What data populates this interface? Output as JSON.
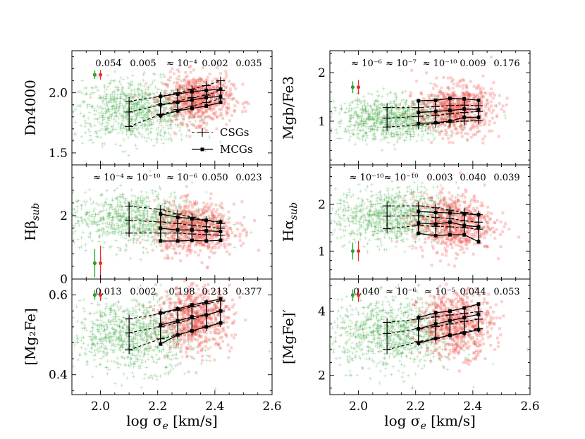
{
  "colors": {
    "csg": "#2ca02c",
    "mcg": "#e8302a",
    "csg_cloud": "#4caf50",
    "mcg_cloud": "#f0524a",
    "line": "#000000"
  },
  "legend": {
    "csg": "CSGs",
    "mcg": "MCGs"
  },
  "xlabel": "log σ_e [km/s]",
  "chart_data": [
    {
      "id": "dn4000",
      "type": "scatter",
      "col": 0,
      "row": 0,
      "ylabel": "Dn4000",
      "ylim": [
        1.4,
        2.35
      ],
      "yticks": [
        1.5,
        2.0
      ],
      "xlim": [
        1.9,
        2.6
      ],
      "xticks": [
        2.0,
        2.2,
        2.4,
        2.6
      ],
      "pvalues": [
        "0.054",
        "0.005",
        "≈ 10⁻⁴",
        "0.002",
        "0.035"
      ],
      "err_csg": {
        "x": 1.98,
        "y": 2.15,
        "err": 0.035
      },
      "err_mcg": {
        "x": 2.0,
        "y": 2.15,
        "err": 0.04
      },
      "cloud_csg": {
        "cx": 2.12,
        "cy": 1.85,
        "sx": 0.11,
        "sy": 0.13
      },
      "cloud_mcg": {
        "cx": 2.34,
        "cy": 1.95,
        "sx": 0.06,
        "sy": 0.1
      },
      "csg_x": [
        2.1,
        2.21,
        2.27,
        2.32,
        2.37,
        2.42
      ],
      "csg_lines": [
        [
          1.93,
          1.97,
          2.0,
          2.03,
          2.06,
          2.1
        ],
        [
          1.84,
          1.9,
          1.93,
          1.96,
          1.98,
          2.02
        ],
        [
          1.72,
          1.82,
          1.86,
          1.89,
          1.92,
          1.95
        ]
      ],
      "mcg_x": [
        2.21,
        2.27,
        2.32,
        2.37,
        2.42
      ],
      "mcg_lines": [
        [
          1.97,
          1.99,
          2.01,
          2.02,
          2.03
        ],
        [
          1.9,
          1.92,
          1.94,
          1.96,
          1.97
        ],
        [
          1.81,
          1.85,
          1.87,
          1.89,
          1.92
        ]
      ],
      "show_legend": true
    },
    {
      "id": "hbeta",
      "type": "scatter",
      "col": 0,
      "row": 1,
      "ylabel": "Hβ_sub",
      "ylim": [
        0,
        3.6
      ],
      "yticks": [
        0,
        2
      ],
      "xlim": [
        1.9,
        2.6
      ],
      "xticks": [
        2.0,
        2.2,
        2.4,
        2.6
      ],
      "pvalues": [
        "≈ 10⁻⁴",
        "≈ 10⁻¹⁰",
        "≈ 10⁻⁶",
        "0.050",
        "0.023"
      ],
      "err_csg": {
        "x": 1.98,
        "y": 0.5,
        "err": 0.45
      },
      "err_mcg": {
        "x": 2.0,
        "y": 0.5,
        "err": 0.55
      },
      "cloud_csg": {
        "cx": 2.13,
        "cy": 1.9,
        "sx": 0.12,
        "sy": 0.42
      },
      "cloud_mcg": {
        "cx": 2.33,
        "cy": 1.6,
        "sx": 0.07,
        "sy": 0.4
      },
      "csg_x": [
        2.1,
        2.21,
        2.27,
        2.32,
        2.37,
        2.42
      ],
      "csg_lines": [
        [
          2.3,
          2.2,
          2.05,
          1.95,
          1.85,
          1.75
        ],
        [
          1.85,
          1.8,
          1.75,
          1.7,
          1.65,
          1.6
        ],
        [
          1.45,
          1.45,
          1.45,
          1.42,
          1.4,
          1.38
        ]
      ],
      "mcg_x": [
        2.21,
        2.27,
        2.32,
        2.37,
        2.42
      ],
      "mcg_lines": [
        [
          2.05,
          1.95,
          1.9,
          1.85,
          1.8
        ],
        [
          1.6,
          1.55,
          1.55,
          1.52,
          1.5
        ],
        [
          1.2,
          1.2,
          1.22,
          1.2,
          1.22
        ]
      ],
      "show_legend": false
    },
    {
      "id": "mg2fe",
      "type": "scatter",
      "col": 0,
      "row": 2,
      "ylabel": "[Mg₂Fe]",
      "ylim": [
        0.35,
        0.64
      ],
      "yticks": [
        0.4,
        0.6
      ],
      "xlim": [
        1.9,
        2.6
      ],
      "xticks": [
        2.0,
        2.2,
        2.4,
        2.6
      ],
      "xticklabels": [
        "2.0",
        "2.2",
        "2.4",
        "2.6"
      ],
      "pvalues": [
        "0.013",
        "0.002",
        "0.198",
        "0.213",
        "0.377"
      ],
      "err_csg": {
        "x": 1.98,
        "y": 0.6,
        "err": 0.012
      },
      "err_mcg": {
        "x": 2.0,
        "y": 0.6,
        "err": 0.015
      },
      "cloud_csg": {
        "cx": 2.12,
        "cy": 0.5,
        "sx": 0.11,
        "sy": 0.045
      },
      "cloud_mcg": {
        "cx": 2.33,
        "cy": 0.54,
        "sx": 0.065,
        "sy": 0.04
      },
      "csg_x": [
        2.1,
        2.21,
        2.27,
        2.32,
        2.37,
        2.42
      ],
      "csg_lines": [
        [
          0.54,
          0.553,
          0.562,
          0.57,
          0.578,
          0.585
        ],
        [
          0.505,
          0.52,
          0.53,
          0.54,
          0.55,
          0.56
        ],
        [
          0.462,
          0.49,
          0.5,
          0.51,
          0.52,
          0.53
        ]
      ],
      "mcg_x": [
        2.21,
        2.27,
        2.32,
        2.37,
        2.42
      ],
      "mcg_lines": [
        [
          0.555,
          0.565,
          0.575,
          0.582,
          0.59
        ],
        [
          0.525,
          0.535,
          0.545,
          0.55,
          0.56
        ],
        [
          0.477,
          0.5,
          0.51,
          0.52,
          0.53
        ]
      ],
      "show_legend": false
    },
    {
      "id": "mgbfe3",
      "type": "scatter",
      "col": 1,
      "row": 0,
      "ylabel": "Mgb/Fe3",
      "ylim": [
        0.1,
        2.45
      ],
      "yticks": [
        1,
        2
      ],
      "xlim": [
        1.9,
        2.6
      ],
      "xticks": [
        2.0,
        2.2,
        2.4,
        2.6
      ],
      "pvalues": [
        "≈ 10⁻⁶",
        "≈ 10⁻⁷",
        "≈ 10⁻¹⁰",
        "0.009",
        "0.176"
      ],
      "err_csg": {
        "x": 1.98,
        "y": 1.7,
        "err": 0.12
      },
      "err_mcg": {
        "x": 2.0,
        "y": 1.7,
        "err": 0.15
      },
      "cloud_csg": {
        "cx": 2.12,
        "cy": 1.05,
        "sx": 0.11,
        "sy": 0.22
      },
      "cloud_mcg": {
        "cx": 2.34,
        "cy": 1.25,
        "sx": 0.065,
        "sy": 0.25
      },
      "csg_x": [
        2.1,
        2.21,
        2.27,
        2.32,
        2.37,
        2.42
      ],
      "csg_lines": [
        [
          1.28,
          1.28,
          1.3,
          1.32,
          1.33,
          1.32
        ],
        [
          1.06,
          1.1,
          1.12,
          1.15,
          1.18,
          1.2
        ],
        [
          0.88,
          0.92,
          0.95,
          0.98,
          1.0,
          1.02
        ]
      ],
      "mcg_x": [
        2.21,
        2.27,
        2.32,
        2.37,
        2.42
      ],
      "mcg_lines": [
        [
          1.42,
          1.43,
          1.47,
          1.46,
          1.43
        ],
        [
          1.18,
          1.2,
          1.22,
          1.25,
          1.24
        ],
        [
          0.95,
          0.97,
          1.0,
          1.08,
          1.08
        ]
      ],
      "show_legend": false
    },
    {
      "id": "halpha",
      "type": "scatter",
      "col": 1,
      "row": 1,
      "ylabel": "Hα_sub",
      "ylim": [
        0.4,
        2.85
      ],
      "yticks": [
        1,
        2
      ],
      "xlim": [
        1.9,
        2.6
      ],
      "xticks": [
        2.0,
        2.2,
        2.4,
        2.6
      ],
      "pvalues": [
        "≈ 10⁻¹⁰",
        "≈ 10⁻¹⁰",
        "0.003",
        "0.040",
        "0.039"
      ],
      "err_csg": {
        "x": 1.98,
        "y": 1.0,
        "err": 0.18
      },
      "err_mcg": {
        "x": 2.0,
        "y": 1.0,
        "err": 0.22
      },
      "cloud_csg": {
        "cx": 2.13,
        "cy": 1.75,
        "sx": 0.11,
        "sy": 0.3
      },
      "cloud_mcg": {
        "cx": 2.33,
        "cy": 1.6,
        "sx": 0.07,
        "sy": 0.3
      },
      "csg_x": [
        2.1,
        2.21,
        2.27,
        2.32,
        2.37,
        2.42
      ],
      "csg_lines": [
        [
          1.97,
          1.97,
          1.93,
          1.88,
          1.83,
          1.78
        ],
        [
          1.75,
          1.76,
          1.72,
          1.7,
          1.65,
          1.62
        ],
        [
          1.48,
          1.55,
          1.53,
          1.52,
          1.5,
          1.47
        ]
      ],
      "mcg_x": [
        2.21,
        2.27,
        2.32,
        2.37,
        2.42
      ],
      "mcg_lines": [
        [
          1.85,
          1.83,
          1.82,
          1.8,
          1.78
        ],
        [
          1.6,
          1.58,
          1.62,
          1.55,
          1.52
        ],
        [
          1.38,
          1.33,
          1.35,
          1.35,
          1.2
        ]
      ],
      "show_legend": false
    },
    {
      "id": "mgfe",
      "type": "scatter",
      "col": 1,
      "row": 2,
      "ylabel": "[MgFe]′",
      "ylim": [
        1.4,
        5.0
      ],
      "yticks": [
        2,
        4
      ],
      "xlim": [
        1.9,
        2.6
      ],
      "xticks": [
        2.0,
        2.2,
        2.4,
        2.6
      ],
      "xticklabels": [
        "2.0",
        "2.2",
        "2.4",
        "2.6"
      ],
      "pvalues": [
        "0.040",
        "≈ 10⁻⁶",
        "≈ 10⁻⁵",
        "0.044",
        "0.053"
      ],
      "err_csg": {
        "x": 1.98,
        "y": 4.5,
        "err": 0.18
      },
      "err_mcg": {
        "x": 2.0,
        "y": 4.5,
        "err": 0.22
      },
      "cloud_csg": {
        "cx": 2.12,
        "cy": 3.3,
        "sx": 0.11,
        "sy": 0.55
      },
      "cloud_mcg": {
        "cx": 2.34,
        "cy": 3.6,
        "sx": 0.065,
        "sy": 0.5
      },
      "csg_x": [
        2.1,
        2.21,
        2.27,
        2.32,
        2.37,
        2.42
      ],
      "csg_lines": [
        [
          3.65,
          3.75,
          3.82,
          3.88,
          3.93,
          3.98
        ],
        [
          3.3,
          3.45,
          3.52,
          3.6,
          3.68,
          3.75
        ],
        [
          2.8,
          3.05,
          3.15,
          3.25,
          3.35,
          3.45
        ]
      ],
      "mcg_x": [
        2.21,
        2.27,
        2.32,
        2.37,
        2.42
      ],
      "mcg_lines": [
        [
          3.8,
          3.95,
          4.0,
          4.1,
          4.22
        ],
        [
          3.45,
          3.6,
          3.7,
          3.8,
          3.9
        ],
        [
          3.0,
          3.15,
          3.25,
          3.32,
          3.42
        ]
      ],
      "show_legend": false
    }
  ]
}
